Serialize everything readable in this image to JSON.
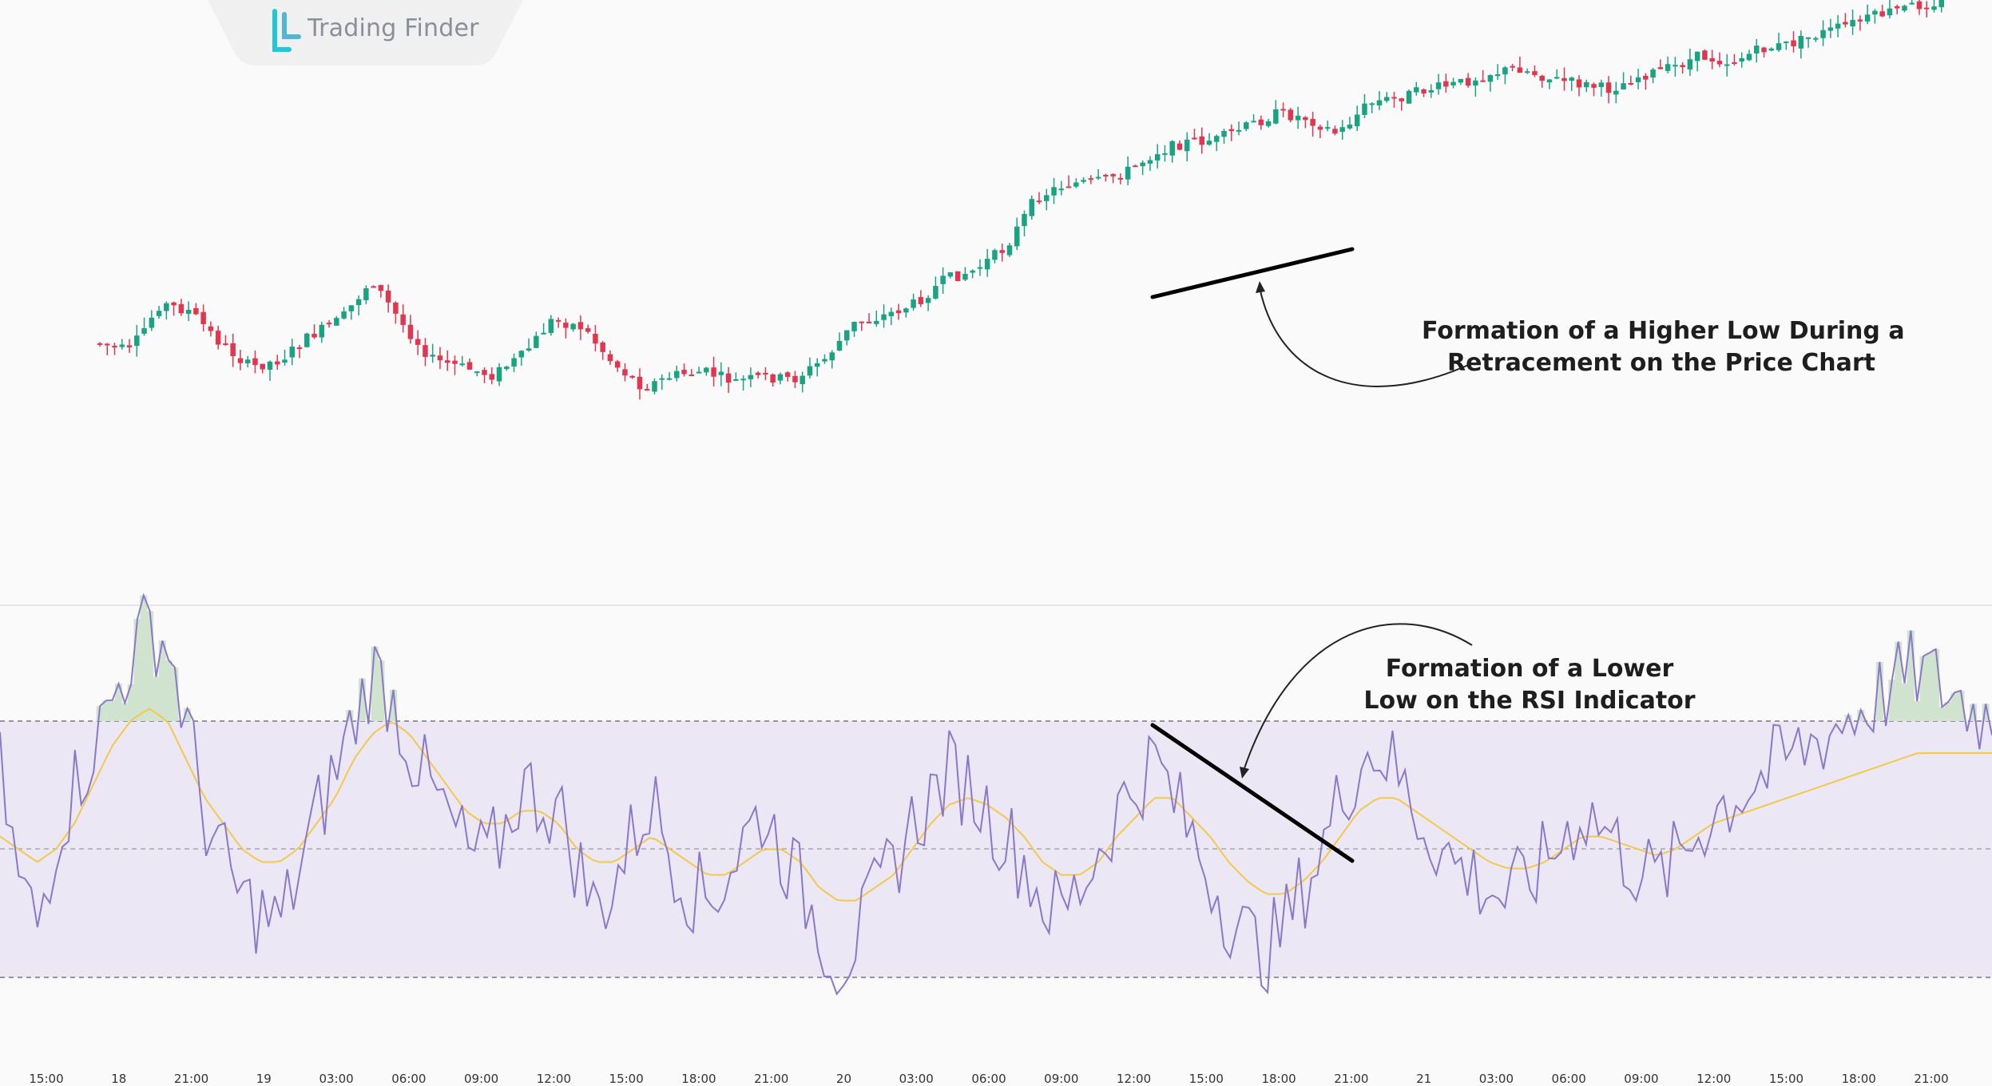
{
  "brand": {
    "name": "Trading Finder",
    "colors": {
      "accent": "#1ec8d8"
    }
  },
  "annotations": {
    "price": {
      "lines": [
        "Formation of a Higher Low During a",
        "Retracement on the Price Chart"
      ]
    },
    "rsi": {
      "lines": [
        "Formation of a Lower",
        "Low on the RSI Indicator"
      ]
    }
  },
  "colors": {
    "up": "#1aa383",
    "down": "#e0364f",
    "rsi_line": "#8a78c8",
    "rsi_ma": "#f2c94c",
    "rsi_band": "#ece7f4",
    "overbought_fill": "#cfe3cf",
    "trendline": "#000000"
  },
  "chart_data": [
    {
      "type": "candlestick",
      "title": "",
      "x_ticks": [
        "15:00",
        "18",
        "21:00",
        "19",
        "03:00",
        "06:00",
        "09:00",
        "12:00",
        "15:00",
        "18:00",
        "21:00",
        "20",
        "03:00",
        "06:00",
        "09:00",
        "12:00",
        "15:00",
        "18:00",
        "21:00",
        "21",
        "03:00",
        "06:00",
        "09:00",
        "12:00",
        "15:00",
        "18:00",
        "21:00"
      ],
      "close_path": [
        [
          0,
          430
        ],
        [
          6,
          440
        ],
        [
          12,
          380
        ],
        [
          18,
          390
        ],
        [
          24,
          430
        ],
        [
          30,
          460
        ],
        [
          36,
          450
        ],
        [
          42,
          420
        ],
        [
          48,
          400
        ],
        [
          54,
          350
        ],
        [
          60,
          405
        ],
        [
          66,
          450
        ],
        [
          72,
          460
        ],
        [
          78,
          470
        ],
        [
          84,
          445
        ],
        [
          90,
          400
        ],
        [
          96,
          410
        ],
        [
          102,
          455
        ],
        [
          108,
          485
        ],
        [
          114,
          470
        ],
        [
          120,
          465
        ],
        [
          126,
          478
        ],
        [
          132,
          472
        ],
        [
          138,
          475
        ],
        [
          144,
          450
        ],
        [
          150,
          405
        ],
        [
          156,
          395
        ],
        [
          162,
          380
        ],
        [
          168,
          350
        ],
        [
          174,
          338
        ],
        [
          180,
          310
        ],
        [
          186,
          248
        ],
        [
          192,
          230
        ],
        [
          198,
          228
        ],
        [
          204,
          215
        ],
        [
          210,
          190
        ],
        [
          216,
          178
        ],
        [
          222,
          175
        ],
        [
          228,
          158
        ],
        [
          234,
          142
        ],
        [
          240,
          148
        ],
        [
          246,
          168
        ],
        [
          252,
          130
        ],
        [
          258,
          122
        ],
        [
          264,
          112
        ],
        [
          270,
          105
        ],
        [
          276,
          92
        ],
        [
          282,
          85
        ],
        [
          288,
          98
        ],
        [
          294,
          105
        ],
        [
          300,
          112
        ],
        [
          306,
          95
        ],
        [
          312,
          86
        ],
        [
          318,
          70
        ],
        [
          324,
          78
        ],
        [
          330,
          62
        ],
        [
          336,
          55
        ],
        [
          342,
          42
        ],
        [
          348,
          30
        ],
        [
          354,
          18
        ],
        [
          360,
          8
        ],
        [
          366,
          2
        ]
      ],
      "down_path": [
        [
          0,
          438
        ],
        [
          6,
          445
        ],
        [
          12,
          385
        ],
        [
          18,
          392
        ],
        [
          24,
          432
        ],
        [
          30,
          463
        ],
        [
          36,
          452
        ],
        [
          42,
          425
        ],
        [
          48,
          402
        ],
        [
          54,
          356
        ],
        [
          60,
          408
        ],
        [
          66,
          452
        ],
        [
          72,
          462
        ],
        [
          78,
          472
        ],
        [
          84,
          447
        ],
        [
          90,
          402
        ],
        [
          96,
          412
        ],
        [
          102,
          457
        ],
        [
          108,
          487
        ],
        [
          114,
          472
        ],
        [
          120,
          467
        ],
        [
          126,
          480
        ],
        [
          132,
          474
        ],
        [
          138,
          477
        ],
        [
          144,
          452
        ],
        [
          150,
          407
        ],
        [
          156,
          397
        ],
        [
          162,
          382
        ],
        [
          168,
          352
        ],
        [
          174,
          340
        ],
        [
          180,
          312
        ],
        [
          186,
          250
        ],
        [
          192,
          233
        ],
        [
          198,
          230
        ],
        [
          204,
          218
        ],
        [
          210,
          193
        ],
        [
          216,
          180
        ],
        [
          222,
          177
        ],
        [
          228,
          160
        ],
        [
          234,
          144
        ],
        [
          240,
          150
        ],
        [
          246,
          170
        ],
        [
          252,
          132
        ],
        [
          258,
          124
        ],
        [
          264,
          114
        ],
        [
          270,
          107
        ],
        [
          276,
          94
        ],
        [
          282,
          87
        ],
        [
          288,
          100
        ],
        [
          294,
          107
        ],
        [
          300,
          114
        ],
        [
          306,
          97
        ],
        [
          312,
          88
        ],
        [
          318,
          72
        ],
        [
          324,
          80
        ],
        [
          330,
          64
        ],
        [
          336,
          57
        ],
        [
          342,
          44
        ],
        [
          348,
          32
        ],
        [
          354,
          20
        ],
        [
          360,
          10
        ],
        [
          366,
          4
        ]
      ]
    },
    {
      "type": "line",
      "title": "",
      "series": [
        {
          "name": "",
          "values": [
            62,
            45,
            38,
            52,
            60,
            66,
            73,
            80,
            85,
            82,
            70,
            55,
            48,
            42,
            40,
            38,
            46,
            55,
            62,
            70,
            78,
            74,
            66,
            60,
            55,
            50,
            48,
            52,
            60,
            58,
            56,
            48,
            40,
            45,
            52,
            58,
            50,
            44,
            42,
            46,
            52,
            56,
            50,
            44,
            38,
            32,
            36,
            42,
            48,
            54,
            58,
            62,
            60,
            56,
            52,
            48,
            42,
            40,
            44,
            50,
            56,
            60,
            64,
            58,
            52,
            46,
            40,
            36,
            34,
            38,
            44,
            50,
            58,
            64,
            66,
            62,
            56,
            52,
            48,
            46,
            44,
            42,
            45,
            48,
            52,
            56,
            54,
            50,
            47,
            45,
            48,
            52,
            56,
            58,
            60,
            62,
            64,
            66,
            68,
            70,
            72,
            74,
            76,
            78,
            76,
            74,
            72,
            70
          ]
        },
        {
          "name": "",
          "values": [
            52,
            50,
            48,
            50,
            54,
            60,
            66,
            70,
            72,
            70,
            64,
            58,
            54,
            50,
            48,
            48,
            50,
            54,
            58,
            64,
            68,
            70,
            68,
            64,
            60,
            56,
            54,
            54,
            56,
            56,
            54,
            50,
            48,
            48,
            50,
            52,
            50,
            48,
            46,
            46,
            48,
            50,
            50,
            48,
            44,
            42,
            42,
            44,
            46,
            50,
            54,
            57,
            58,
            57,
            55,
            52,
            48,
            46,
            46,
            48,
            52,
            55,
            58,
            58,
            55,
            52,
            48,
            45,
            43,
            43,
            45,
            48,
            52,
            56,
            58,
            58,
            56,
            54,
            52,
            50,
            48,
            47,
            47,
            48,
            50,
            52,
            52,
            51,
            50,
            49,
            50,
            52,
            54,
            55,
            56,
            57,
            58,
            59,
            60,
            61,
            62,
            63,
            64,
            65,
            65,
            65,
            65,
            65
          ]
        }
      ],
      "ylim": [
        0,
        100
      ],
      "levels": [
        70,
        50,
        30
      ]
    }
  ]
}
